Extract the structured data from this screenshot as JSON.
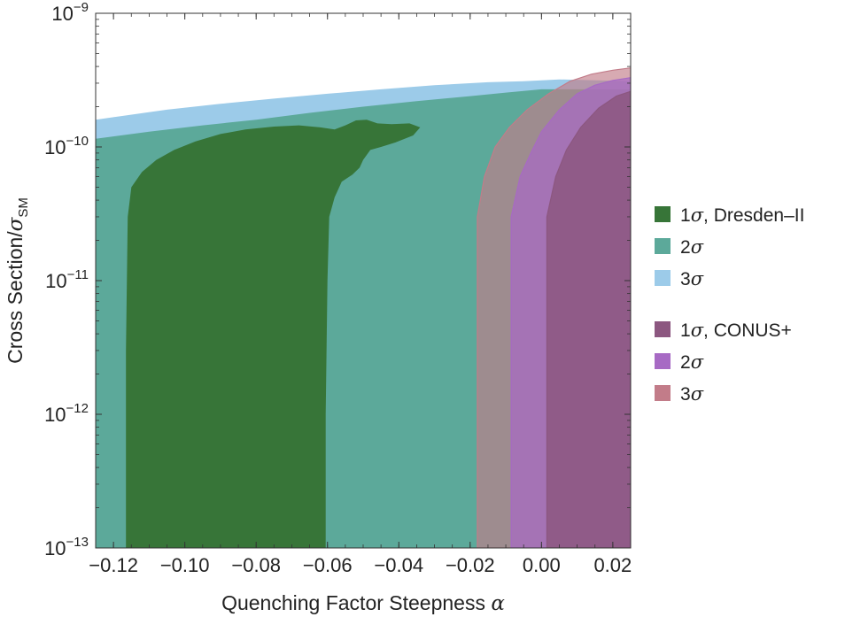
{
  "chart_data": {
    "type": "area",
    "xlabel": "Quenching Factor Steepness",
    "xlabel_symbol": "α",
    "ylabel": "Cross Section/",
    "ylabel_symbol": "σ",
    "ylabel_subscript": "SM",
    "xlim": [
      -0.125,
      0.025
    ],
    "ylim": [
      1e-13,
      1e-09
    ],
    "yscale": "log",
    "grid": false,
    "legend_placement": "right",
    "x_ticks": [
      -0.12,
      -0.1,
      -0.08,
      -0.06,
      -0.04,
      -0.02,
      0.0,
      0.02
    ],
    "x_tick_labels": [
      "−0.12",
      "−0.10",
      "−0.08",
      "−0.06",
      "−0.04",
      "−0.02",
      "0.00",
      "0.02"
    ],
    "y_ticks": [
      {
        "value": 1e-13,
        "base": "10",
        "exp": "−13"
      },
      {
        "value": 1e-12,
        "base": "10",
        "exp": "−12"
      },
      {
        "value": 1e-11,
        "base": "10",
        "exp": "−11"
      },
      {
        "value": 1e-10,
        "base": "10",
        "exp": "−10"
      },
      {
        "value": 1e-09,
        "base": "10",
        "exp": "−9"
      }
    ],
    "regions": [
      {
        "key": "dresden_3s",
        "color": "#9ccbe9",
        "opacity": 1.0,
        "boundary": [
          [
            -0.125,
            1e-13
          ],
          [
            -0.125,
            1.6e-10
          ],
          [
            -0.118,
            1.7e-10
          ],
          [
            -0.105,
            1.9e-10
          ],
          [
            -0.09,
            2.1e-10
          ],
          [
            -0.075,
            2.3e-10
          ],
          [
            -0.06,
            2.5e-10
          ],
          [
            -0.045,
            2.7e-10
          ],
          [
            -0.03,
            2.9e-10
          ],
          [
            -0.015,
            3.05e-10
          ],
          [
            -0.005,
            3.1e-10
          ],
          [
            0.005,
            3.2e-10
          ],
          [
            0.025,
            3.1e-10
          ],
          [
            0.025,
            1e-13
          ]
        ]
      },
      {
        "key": "dresden_2s",
        "color": "#5ca99a",
        "opacity": 1.0,
        "boundary": [
          [
            -0.125,
            1e-13
          ],
          [
            -0.125,
            1.15e-10
          ],
          [
            -0.11,
            1.3e-10
          ],
          [
            -0.095,
            1.45e-10
          ],
          [
            -0.08,
            1.6e-10
          ],
          [
            -0.065,
            1.8e-10
          ],
          [
            -0.05,
            2e-10
          ],
          [
            -0.035,
            2.2e-10
          ],
          [
            -0.02,
            2.4e-10
          ],
          [
            -0.01,
            2.55e-10
          ],
          [
            0.0,
            2.7e-10
          ],
          [
            0.025,
            2.7e-10
          ],
          [
            0.025,
            1e-13
          ],
          [
            -0.0195,
            1e-13
          ],
          [
            -0.0195,
            1e-11
          ],
          [
            -0.019,
            8e-11
          ],
          [
            -0.018,
            1.1e-10
          ],
          [
            -0.0175,
            1e-13
          ]
        ]
      },
      {
        "key": "dresden_1s",
        "color": "#377538",
        "opacity": 1.0,
        "boundary": [
          [
            -0.1165,
            1e-13
          ],
          [
            -0.1165,
            3e-12
          ],
          [
            -0.116,
            3e-11
          ],
          [
            -0.115,
            5e-11
          ],
          [
            -0.112,
            6.5e-11
          ],
          [
            -0.108,
            8e-11
          ],
          [
            -0.103,
            9.5e-11
          ],
          [
            -0.097,
            1.1e-10
          ],
          [
            -0.09,
            1.25e-10
          ],
          [
            -0.083,
            1.35e-10
          ],
          [
            -0.075,
            1.42e-10
          ],
          [
            -0.068,
            1.45e-10
          ],
          [
            -0.062,
            1.4e-10
          ],
          [
            -0.058,
            1.35e-10
          ],
          [
            -0.055,
            1.45e-10
          ],
          [
            -0.052,
            1.58e-10
          ],
          [
            -0.049,
            1.6e-10
          ],
          [
            -0.046,
            1.5e-10
          ],
          [
            -0.042,
            1.48e-10
          ],
          [
            -0.037,
            1.5e-10
          ],
          [
            -0.034,
            1.4e-10
          ],
          [
            -0.036,
            1.22e-10
          ],
          [
            -0.041,
            1.08e-10
          ],
          [
            -0.045,
            1e-10
          ],
          [
            -0.048,
            9.5e-11
          ],
          [
            -0.05,
            8e-11
          ],
          [
            -0.051,
            7e-11
          ],
          [
            -0.053,
            6.2e-11
          ],
          [
            -0.056,
            5.5e-11
          ],
          [
            -0.058,
            4.2e-11
          ],
          [
            -0.0595,
            3e-11
          ],
          [
            -0.06,
            1e-11
          ],
          [
            -0.0605,
            1e-12
          ],
          [
            -0.0605,
            1e-13
          ]
        ]
      },
      {
        "key": "conus_3s",
        "color": "#c27c89",
        "opacity": 0.65,
        "boundary": [
          [
            -0.018,
            1e-13
          ],
          [
            -0.018,
            3e-11
          ],
          [
            -0.016,
            6e-11
          ],
          [
            -0.013,
            1e-10
          ],
          [
            -0.009,
            1.4e-10
          ],
          [
            -0.004,
            1.9e-10
          ],
          [
            0.002,
            2.5e-10
          ],
          [
            0.008,
            3.1e-10
          ],
          [
            0.014,
            3.5e-10
          ],
          [
            0.02,
            3.75e-10
          ],
          [
            0.025,
            3.9e-10
          ],
          [
            0.025,
            1e-13
          ]
        ]
      },
      {
        "key": "conus_2s",
        "color": "#a76ac4",
        "opacity": 0.72,
        "boundary": [
          [
            -0.0085,
            1e-13
          ],
          [
            -0.0085,
            3e-11
          ],
          [
            -0.006,
            6e-11
          ],
          [
            -0.003,
            9e-11
          ],
          [
            0.0,
            1.3e-10
          ],
          [
            0.005,
            1.9e-10
          ],
          [
            0.01,
            2.5e-10
          ],
          [
            0.015,
            2.9e-10
          ],
          [
            0.02,
            3.15e-10
          ],
          [
            0.025,
            3.3e-10
          ],
          [
            0.025,
            1e-13
          ]
        ]
      },
      {
        "key": "conus_1s",
        "color": "#8c5780",
        "opacity": 0.85,
        "boundary": [
          [
            0.0015,
            1e-13
          ],
          [
            0.0015,
            3e-11
          ],
          [
            0.004,
            6e-11
          ],
          [
            0.007,
            9.5e-11
          ],
          [
            0.011,
            1.4e-10
          ],
          [
            0.016,
            1.95e-10
          ],
          [
            0.021,
            2.4e-10
          ],
          [
            0.025,
            2.6e-10
          ],
          [
            0.025,
            1e-13
          ]
        ]
      }
    ],
    "legend_groups": [
      [
        {
          "label": "1",
          "symbol": "σ",
          "suffix": ", Dresden–II",
          "color": "#377538"
        },
        {
          "label": "2",
          "symbol": "σ",
          "suffix": "",
          "color": "#5ca99a"
        },
        {
          "label": "3",
          "symbol": "σ",
          "suffix": "",
          "color": "#9ccbe9"
        }
      ],
      [
        {
          "label": "1",
          "symbol": "σ",
          "suffix": ", CONUS+",
          "color": "#8c5780"
        },
        {
          "label": "2",
          "symbol": "σ",
          "suffix": "",
          "color": "#a76ac4"
        },
        {
          "label": "3",
          "symbol": "σ",
          "suffix": "",
          "color": "#c27c89"
        }
      ]
    ]
  }
}
